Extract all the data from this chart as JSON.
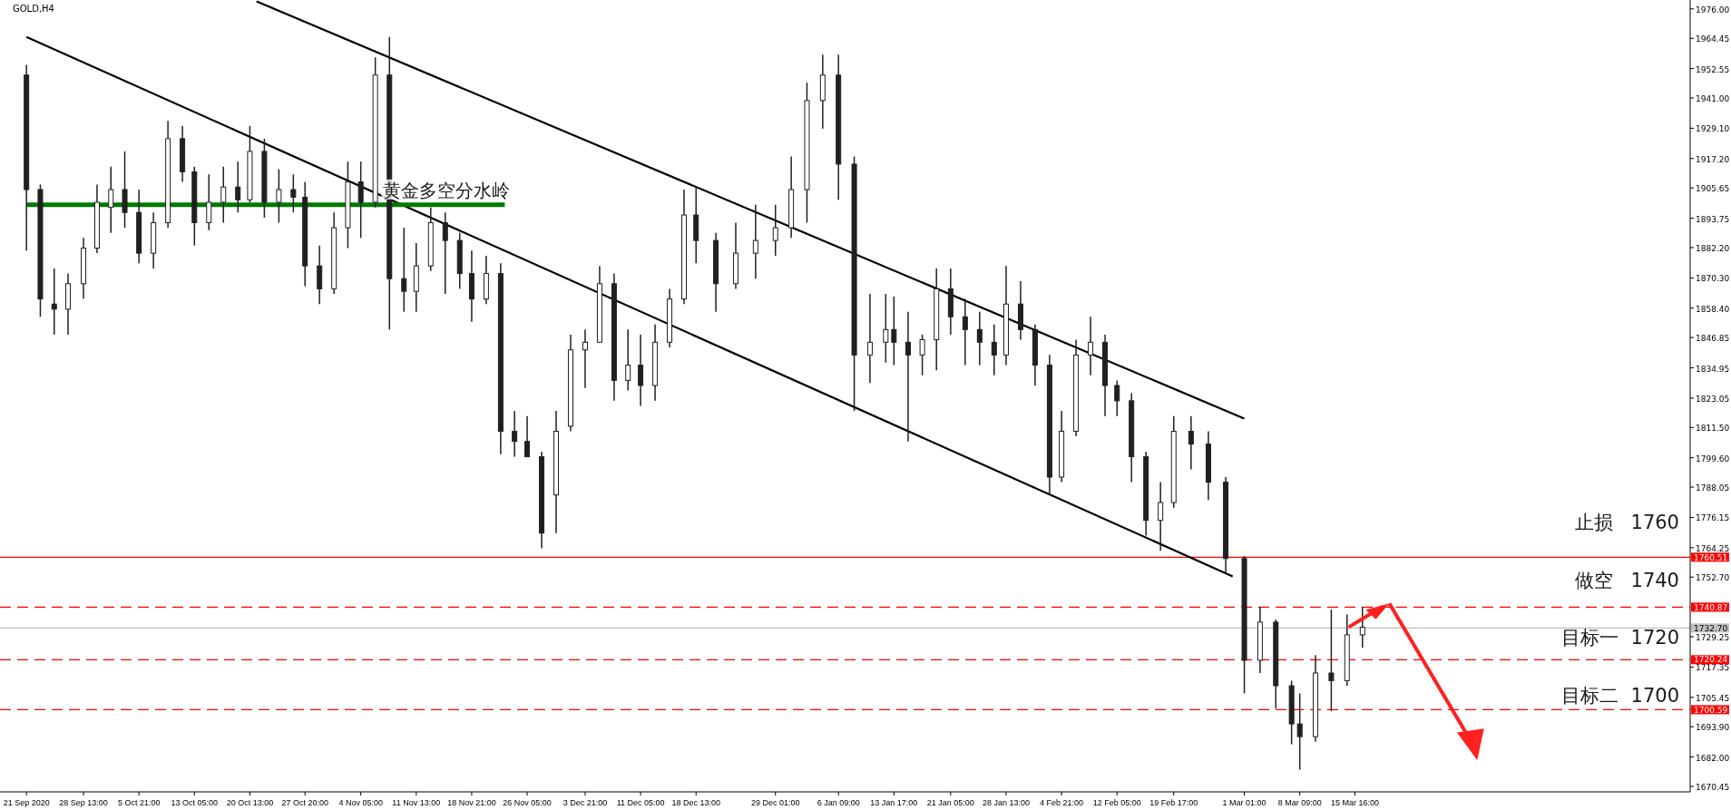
{
  "chart_data": {
    "type": "candlestick",
    "title": "GOLD,H4",
    "color": "#202020",
    "x": [
      "2020-09-21T00:00",
      "2020-09-22T20:00",
      "2020-09-24T16:00",
      "2020-09-26T12:00",
      "2020-09-28T13:00",
      "2020-09-30T08:00",
      "2020-10-02T04:00",
      "2020-10-04T00:00",
      "2020-10-05T21:00",
      "2020-10-07T19:00",
      "2020-10-09T17:00",
      "2020-10-11T15:00",
      "2020-10-13T05:00",
      "2020-10-15T03:00",
      "2020-10-17T01:00",
      "2020-10-18T23:00",
      "2020-10-20T13:00",
      "2020-10-22T11:00",
      "2020-10-24T09:00",
      "2020-10-26T07:00",
      "2020-10-27T20:00",
      "2020-10-29T18:00",
      "2020-10-31T16:00",
      "2020-11-02T12:00",
      "2020-11-04T05:00",
      "2020-11-06T03:00",
      "2020-11-08T00:00",
      "2020-11-09T22:00",
      "2020-11-11T13:00",
      "2020-11-13T11:00",
      "2020-11-15T09:00",
      "2020-11-17T07:00",
      "2020-11-18T21:00",
      "2020-11-20T19:00",
      "2020-11-22T17:00",
      "2020-11-24T13:00",
      "2020-11-26T05:00",
      "2020-11-28T03:00",
      "2020-11-30T01:00",
      "2020-12-01T23:00",
      "2020-12-03T21:00",
      "2020-12-05T19:00",
      "2020-12-07T17:00",
      "2020-12-09T13:00",
      "2020-12-11T05:00",
      "2020-12-13T03:00",
      "2020-12-15T01:00",
      "2020-12-16T23:00",
      "2020-12-18T13:00",
      "2020-12-21T04:00",
      "2020-12-23T19:00",
      "2020-12-26T10:00",
      "2020-12-29T01:00",
      "2020-12-31T03:00",
      "2021-01-02T05:00",
      "2021-01-04T07:00",
      "2021-01-06T09:00",
      "2021-01-08T11:00",
      "2021-01-10T13:00",
      "2021-01-12T15:00",
      "2021-01-13T17:00",
      "2021-01-15T14:00",
      "2021-01-17T11:00",
      "2021-01-19T08:00",
      "2021-01-21T05:00",
      "2021-01-23T03:00",
      "2021-01-25T01:00",
      "2021-01-26T23:00",
      "2021-01-28T13:00",
      "2021-01-30T11:00",
      "2021-02-01T09:00",
      "2021-02-03T07:00",
      "2021-02-04T21:00",
      "2021-02-06T19:00",
      "2021-02-08T17:00",
      "2021-02-10T15:00",
      "2021-02-12T05:00",
      "2021-02-14T03:00",
      "2021-02-16T01:00",
      "2021-02-17T23:00",
      "2021-02-19T17:00",
      "2021-02-22T00:00",
      "2021-02-24T07:00",
      "2021-02-26T14:00",
      "2021-03-01T01:00",
      "2021-03-03T03:00",
      "2021-03-05T05:00",
      "2021-03-07T07:00",
      "2021-03-08T09:00",
      "2021-03-10T11:00",
      "2021-03-12T13:00",
      "2021-03-14T15:00",
      "2021-03-16T16:00"
    ],
    "ohlc": [
      [
        1950,
        1954,
        1881,
        1905
      ],
      [
        1905,
        1907,
        1855,
        1862
      ],
      [
        1860,
        1874,
        1848,
        1858
      ],
      [
        1858,
        1872,
        1848,
        1868
      ],
      [
        1868,
        1886,
        1862,
        1882
      ],
      [
        1882,
        1907,
        1880,
        1900
      ],
      [
        1898,
        1914,
        1888,
        1905
      ],
      [
        1905,
        1920,
        1890,
        1896
      ],
      [
        1896,
        1905,
        1876,
        1880
      ],
      [
        1880,
        1896,
        1874,
        1892
      ],
      [
        1892,
        1932,
        1890,
        1925
      ],
      [
        1925,
        1930,
        1908,
        1912
      ],
      [
        1912,
        1914,
        1883,
        1892
      ],
      [
        1892,
        1911,
        1889,
        1900
      ],
      [
        1900,
        1914,
        1892,
        1906
      ],
      [
        1906,
        1916,
        1896,
        1901
      ],
      [
        1901,
        1930,
        1900,
        1920
      ],
      [
        1920,
        1925,
        1894,
        1900
      ],
      [
        1900,
        1913,
        1892,
        1905
      ],
      [
        1905,
        1911,
        1896,
        1902
      ],
      [
        1902,
        1908,
        1867,
        1875
      ],
      [
        1875,
        1883,
        1860,
        1866
      ],
      [
        1866,
        1896,
        1864,
        1890
      ],
      [
        1890,
        1916,
        1882,
        1908
      ],
      [
        1908,
        1916,
        1886,
        1900
      ],
      [
        1900,
        1957,
        1898,
        1950
      ],
      [
        1950,
        1965,
        1850,
        1870
      ],
      [
        1870,
        1890,
        1857,
        1865
      ],
      [
        1865,
        1884,
        1857,
        1875
      ],
      [
        1875,
        1898,
        1873,
        1892
      ],
      [
        1892,
        1896,
        1864,
        1885
      ],
      [
        1885,
        1888,
        1866,
        1872
      ],
      [
        1872,
        1881,
        1853,
        1862
      ],
      [
        1862,
        1879,
        1860,
        1872
      ],
      [
        1872,
        1876,
        1801,
        1810
      ],
      [
        1810,
        1818,
        1800,
        1806
      ],
      [
        1806,
        1816,
        1800,
        1800
      ],
      [
        1800,
        1802,
        1764,
        1770
      ],
      [
        1785,
        1818,
        1770,
        1810
      ],
      [
        1812,
        1848,
        1810,
        1842
      ],
      [
        1842,
        1850,
        1827,
        1845
      ],
      [
        1845,
        1875,
        1845,
        1868
      ],
      [
        1868,
        1872,
        1822,
        1830
      ],
      [
        1830,
        1850,
        1826,
        1836
      ],
      [
        1836,
        1848,
        1820,
        1828
      ],
      [
        1828,
        1852,
        1822,
        1845
      ],
      [
        1845,
        1866,
        1843,
        1862
      ],
      [
        1862,
        1905,
        1860,
        1895
      ],
      [
        1895,
        1906,
        1876,
        1885
      ],
      [
        1885,
        1888,
        1857,
        1868
      ],
      [
        1868,
        1892,
        1866,
        1880
      ],
      [
        1880,
        1899,
        1870,
        1885
      ],
      [
        1885,
        1899,
        1879,
        1890
      ],
      [
        1890,
        1918,
        1886,
        1905
      ],
      [
        1905,
        1947,
        1892,
        1940
      ],
      [
        1940,
        1958,
        1929,
        1950
      ],
      [
        1950,
        1958,
        1901,
        1915
      ],
      [
        1915,
        1918,
        1818,
        1840
      ],
      [
        1840,
        1864,
        1829,
        1845
      ],
      [
        1845,
        1864,
        1837,
        1850
      ],
      [
        1850,
        1863,
        1836,
        1845
      ],
      [
        1845,
        1857,
        1806,
        1840
      ],
      [
        1840,
        1848,
        1832,
        1846
      ],
      [
        1846,
        1874,
        1834,
        1866
      ],
      [
        1866,
        1874,
        1848,
        1855
      ],
      [
        1855,
        1862,
        1836,
        1850
      ],
      [
        1850,
        1857,
        1836,
        1845
      ],
      [
        1845,
        1852,
        1832,
        1840
      ],
      [
        1840,
        1875,
        1836,
        1860
      ],
      [
        1860,
        1869,
        1846,
        1850
      ],
      [
        1850,
        1852,
        1828,
        1836
      ],
      [
        1836,
        1840,
        1785,
        1792
      ],
      [
        1792,
        1818,
        1790,
        1810
      ],
      [
        1810,
        1846,
        1808,
        1840
      ],
      [
        1840,
        1855,
        1832,
        1845
      ],
      [
        1845,
        1848,
        1816,
        1828
      ],
      [
        1828,
        1830,
        1816,
        1822
      ],
      [
        1822,
        1825,
        1790,
        1800
      ],
      [
        1800,
        1802,
        1769,
        1775
      ],
      [
        1775,
        1790,
        1763,
        1782
      ],
      [
        1782,
        1816,
        1780,
        1810
      ],
      [
        1810,
        1816,
        1795,
        1805
      ],
      [
        1805,
        1810,
        1783,
        1790
      ],
      [
        1790,
        1792,
        1754,
        1760
      ],
      [
        1760,
        1761,
        1707,
        1720
      ],
      [
        1720,
        1741,
        1715,
        1735
      ],
      [
        1735,
        1736,
        1701,
        1710
      ],
      [
        1710,
        1712,
        1687,
        1695
      ],
      [
        1695,
        1707,
        1677,
        1690
      ],
      [
        1690,
        1722,
        1688,
        1715
      ],
      [
        1715,
        1740,
        1700,
        1712
      ],
      [
        1712,
        1738,
        1710,
        1730
      ],
      [
        1730,
        1741,
        1725,
        1733
      ]
    ],
    "series": [
      {
        "type": "line",
        "color": "#000000",
        "x": [
          "2020-10-21T10:00",
          "2021-03-01T01:00"
        ],
        "values": [
          1979,
          1815
        ]
      },
      {
        "type": "line",
        "color": "#000000",
        "x": [
          "2020-09-21T00:00",
          "2021-02-27T12:00"
        ],
        "values": [
          1965,
          1753
        ]
      },
      {
        "type": "line",
        "name": "黄金多空分水岭",
        "color": "#007a00",
        "x": [
          "2020-09-21T00:00",
          "2020-11-23T06:00"
        ],
        "values": [
          1899,
          1899
        ]
      }
    ],
    "xlim": [
      "2020-09-17T12:00",
      "2021-04-29T00:00"
    ],
    "xticks": [
      {
        "value": "2020-09-21T00:00",
        "label": "21 Sep 2020"
      },
      {
        "value": "2020-09-28T13:00",
        "label": "28 Sep 13:00"
      },
      {
        "value": "2020-10-05T21:00",
        "label": "5 Oct 21:00"
      },
      {
        "value": "2020-10-13T05:00",
        "label": "13 Oct 05:00"
      },
      {
        "value": "2020-10-20T13:00",
        "label": "20 Oct 13:00"
      },
      {
        "value": "2020-10-27T20:00",
        "label": "27 Oct 20:00"
      },
      {
        "value": "2020-11-04T05:00",
        "label": "4 Nov 05:00"
      },
      {
        "value": "2020-11-11T13:00",
        "label": "11 Nov 13:00"
      },
      {
        "value": "2020-11-18T21:00",
        "label": "18 Nov 21:00"
      },
      {
        "value": "2020-11-26T05:00",
        "label": "26 Nov 05:00"
      },
      {
        "value": "2020-12-03T21:00",
        "label": "3 Dec 21:00"
      },
      {
        "value": "2020-12-11T05:00",
        "label": "11 Dec 05:00"
      },
      {
        "value": "2020-12-18T13:00",
        "label": "18 Dec 13:00"
      },
      {
        "value": "2020-12-29T01:00",
        "label": "29 Dec 01:00"
      },
      {
        "value": "2021-01-06T09:00",
        "label": "6 Jan 09:00"
      },
      {
        "value": "2021-01-13T17:00",
        "label": "13 Jan 17:00"
      },
      {
        "value": "2021-01-21T05:00",
        "label": "21 Jan 05:00"
      },
      {
        "value": "2021-01-28T13:00",
        "label": "28 Jan 13:00"
      },
      {
        "value": "2021-02-04T21:00",
        "label": "4 Feb 21:00"
      },
      {
        "value": "2021-02-12T05:00",
        "label": "12 Feb 05:00"
      },
      {
        "value": "2021-02-19T17:00",
        "label": "19 Feb 17:00"
      },
      {
        "value": "2021-03-01T01:00",
        "label": "1 Mar 01:00"
      },
      {
        "value": "2021-03-08T09:00",
        "label": "8 Mar 09:00"
      },
      {
        "value": "2021-03-15T16:00",
        "label": "15 Mar 16:00"
      }
    ],
    "ylim": [
      1668.3,
      1979.5
    ],
    "yticks": [
      {
        "value": 1976,
        "label": "1976.00"
      },
      {
        "value": 1964.45,
        "label": "1964.45"
      },
      {
        "value": 1952.55,
        "label": "1952.55"
      },
      {
        "value": 1941,
        "label": "1941.00"
      },
      {
        "value": 1929.1,
        "label": "1929.10"
      },
      {
        "value": 1917.2,
        "label": "1917.20"
      },
      {
        "value": 1905.65,
        "label": "1905.65"
      },
      {
        "value": 1893.75,
        "label": "1893.75"
      },
      {
        "value": 1882.2,
        "label": "1882.20"
      },
      {
        "value": 1870.3,
        "label": "1870.30"
      },
      {
        "value": 1858.4,
        "label": "1858.40"
      },
      {
        "value": 1846.85,
        "label": "1846.85"
      },
      {
        "value": 1834.95,
        "label": "1834.95"
      },
      {
        "value": 1823.05,
        "label": "1823.05"
      },
      {
        "value": 1811.5,
        "label": "1811.50"
      },
      {
        "value": 1799.6,
        "label": "1799.60"
      },
      {
        "value": 1788.05,
        "label": "1788.05"
      },
      {
        "value": 1776.15,
        "label": "1776.15"
      },
      {
        "value": 1764.25,
        "label": "1764.25"
      },
      {
        "value": 1752.7,
        "label": "1752.70"
      },
      {
        "value": 1729.25,
        "label": "1729.25"
      },
      {
        "value": 1717.35,
        "label": "1717.35"
      },
      {
        "value": 1705.45,
        "label": "1705.45"
      },
      {
        "value": 1693.9,
        "label": "1693.90"
      },
      {
        "value": 1682,
        "label": "1682.00"
      },
      {
        "value": 1670.45,
        "label": "1670.45"
      }
    ],
    "ref_lines": [
      {
        "axis": "y",
        "value": 1760.51,
        "label": "1760.51",
        "color": "#ff0000",
        "line_style": "solid"
      },
      {
        "axis": "y",
        "value": 1740.87,
        "label": "1740.87",
        "color": "#ff0000",
        "line_style": "dashed"
      },
      {
        "axis": "y",
        "value": 1732.7,
        "label": "1732.70",
        "color": "#c0c0c0",
        "line_style": "solid"
      },
      {
        "axis": "y",
        "value": 1720.24,
        "label": "1720.24",
        "color": "#ff0000",
        "line_style": "dashed"
      },
      {
        "axis": "y",
        "value": 1700.59,
        "label": "1700.59",
        "color": "#ff0000",
        "line_style": "dashed"
      }
    ],
    "annotations": [
      "止损   1760",
      "做空   1740",
      "目标一  1720",
      "目标二  1700"
    ]
  }
}
